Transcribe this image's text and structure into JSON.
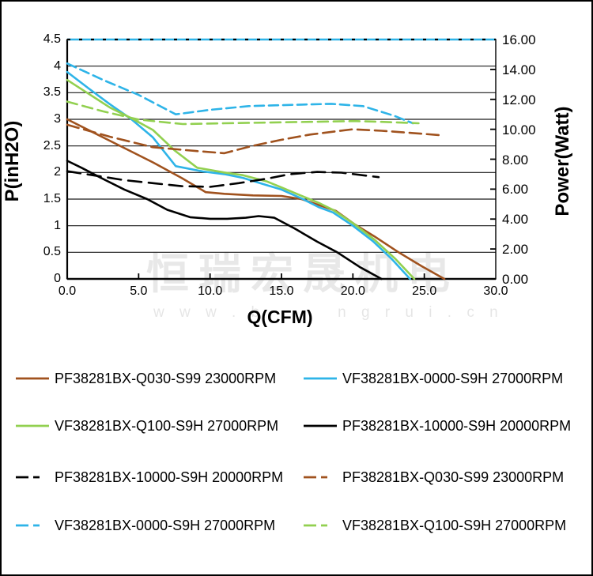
{
  "page": {
    "background": "#ffffff",
    "border_color": "#000000"
  },
  "colors": {
    "brown": "#A0521E",
    "cyan": "#2EB4E8",
    "green": "#92D050",
    "black": "#000000",
    "gridline": "#1a1a1a"
  },
  "chart_data": {
    "type": "line",
    "title": "",
    "xlabel": "Q(CFM)",
    "ylabel_left": "P(inH2O)",
    "ylabel_right": "Power(Watt)",
    "x_range": [
      0,
      30
    ],
    "x_ticks": [
      "0.0",
      "5.0",
      "10.0",
      "15.0",
      "20.0",
      "25.0",
      "30.0"
    ],
    "y_left_range": [
      0,
      4.5
    ],
    "y_left_ticks": [
      "4.5",
      "4",
      "3.5",
      "3",
      "2.5",
      "2",
      "1.5",
      "1",
      "0.5",
      "0"
    ],
    "y_right_range": [
      0,
      16
    ],
    "y_right_ticks": [
      "16.00",
      "14.00",
      "12.00",
      "10.00",
      "8.00",
      "6.00",
      "4.00",
      "2.00",
      "0.00"
    ],
    "grid": "horizontal gridlines every 0.5 inH2O",
    "legend_position": "bottom",
    "limit_line": {
      "axis": "right",
      "value": 16.0,
      "style": "cyan solid with black dots",
      "colors": [
        "#2EB4E8",
        "#000000"
      ]
    },
    "series": [
      {
        "name": "PF38281BX-Q030-S99 23000RPM",
        "curve": "static pressure",
        "axis": "left",
        "style": "solid",
        "color": "#A0521E",
        "points": [
          [
            0,
            3.0
          ],
          [
            2,
            2.73
          ],
          [
            4,
            2.46
          ],
          [
            6,
            2.19
          ],
          [
            8,
            1.9
          ],
          [
            9.7,
            1.63
          ],
          [
            11,
            1.6
          ],
          [
            13,
            1.57
          ],
          [
            15,
            1.56
          ],
          [
            16.4,
            1.5
          ],
          [
            18.8,
            1.28
          ],
          [
            20.1,
            1.03
          ],
          [
            21.5,
            0.8
          ],
          [
            23.2,
            0.5
          ],
          [
            24.8,
            0.24
          ],
          [
            26.4,
            0
          ]
        ]
      },
      {
        "name": "VF38281BX-0000-S9H 27000RPM",
        "curve": "static pressure",
        "axis": "left",
        "style": "solid",
        "color": "#2EB4E8",
        "points": [
          [
            0,
            3.89
          ],
          [
            1.5,
            3.58
          ],
          [
            3,
            3.28
          ],
          [
            4.5,
            3.0
          ],
          [
            6,
            2.66
          ],
          [
            7.6,
            2.12
          ],
          [
            9.5,
            2.02
          ],
          [
            11,
            1.97
          ],
          [
            12.3,
            1.9
          ],
          [
            14,
            1.76
          ],
          [
            15,
            1.68
          ],
          [
            16.5,
            1.5
          ],
          [
            17.6,
            1.35
          ],
          [
            18.6,
            1.25
          ],
          [
            20,
            1.0
          ],
          [
            21.4,
            0.71
          ],
          [
            22.7,
            0.38
          ],
          [
            24,
            0
          ]
        ]
      },
      {
        "name": "VF38281BX-Q100-S9H 27000RPM",
        "curve": "static pressure",
        "axis": "left",
        "style": "solid",
        "color": "#92D050",
        "points": [
          [
            0,
            3.74
          ],
          [
            1.5,
            3.48
          ],
          [
            3,
            3.22
          ],
          [
            4.5,
            3.02
          ],
          [
            6,
            2.8
          ],
          [
            7.5,
            2.42
          ],
          [
            9.1,
            2.09
          ],
          [
            11,
            2.0
          ],
          [
            12.3,
            1.95
          ],
          [
            14,
            1.83
          ],
          [
            15,
            1.72
          ],
          [
            16.5,
            1.55
          ],
          [
            17.6,
            1.43
          ],
          [
            18.6,
            1.3
          ],
          [
            20,
            1.05
          ],
          [
            21.5,
            0.74
          ],
          [
            23,
            0.37
          ],
          [
            24.3,
            0
          ]
        ]
      },
      {
        "name": "PF38281BX-10000-S9H 20000RPM",
        "curve": "static pressure",
        "axis": "left",
        "style": "solid",
        "color": "#000000",
        "points": [
          [
            0,
            2.22
          ],
          [
            1,
            2.09
          ],
          [
            2.5,
            1.88
          ],
          [
            4,
            1.68
          ],
          [
            5.6,
            1.5
          ],
          [
            7,
            1.3
          ],
          [
            8.6,
            1.16
          ],
          [
            10,
            1.13
          ],
          [
            11.2,
            1.13
          ],
          [
            12.5,
            1.15
          ],
          [
            13.4,
            1.18
          ],
          [
            14.5,
            1.15
          ],
          [
            15.9,
            0.95
          ],
          [
            17.5,
            0.7
          ],
          [
            18.9,
            0.5
          ],
          [
            20.5,
            0.22
          ],
          [
            22,
            0
          ]
        ]
      },
      {
        "name": "PF38281BX-10000-S9H 20000RPM",
        "curve": "power",
        "axis": "right",
        "style": "dashed",
        "color": "#000000",
        "dash": "17 9",
        "points": [
          [
            0,
            7.2
          ],
          [
            2,
            6.9
          ],
          [
            4,
            6.6
          ],
          [
            6,
            6.4
          ],
          [
            8,
            6.2
          ],
          [
            10,
            6.15
          ],
          [
            12,
            6.4
          ],
          [
            14,
            6.7
          ],
          [
            15.6,
            7.0
          ],
          [
            17.5,
            7.15
          ],
          [
            19.2,
            7.1
          ],
          [
            21.8,
            6.8
          ]
        ]
      },
      {
        "name": "PF38281BX-Q030-S99 23000RPM",
        "curve": "power",
        "axis": "right",
        "style": "dashed",
        "color": "#A0521E",
        "dash": "15 7",
        "points": [
          [
            0,
            10.3
          ],
          [
            3,
            9.5
          ],
          [
            6,
            8.8
          ],
          [
            9,
            8.55
          ],
          [
            11,
            8.4
          ],
          [
            13,
            8.9
          ],
          [
            15,
            9.3
          ],
          [
            17,
            9.65
          ],
          [
            20,
            10.0
          ],
          [
            22,
            9.9
          ],
          [
            24.2,
            9.75
          ],
          [
            26.2,
            9.6
          ]
        ]
      },
      {
        "name": "VF38281BX-0000-S9H 27000RPM",
        "curve": "power",
        "axis": "right",
        "style": "dashed",
        "color": "#2EB4E8",
        "dash": "12 6",
        "points": [
          [
            0,
            14.4
          ],
          [
            2.5,
            13.3
          ],
          [
            5,
            12.3
          ],
          [
            7.6,
            11.0
          ],
          [
            10,
            11.3
          ],
          [
            12.7,
            11.55
          ],
          [
            14.5,
            11.6
          ],
          [
            16.4,
            11.65
          ],
          [
            18.5,
            11.7
          ],
          [
            20.7,
            11.55
          ],
          [
            22.9,
            10.9
          ],
          [
            24.2,
            10.4
          ]
        ]
      },
      {
        "name": "VF38281BX-Q100-S9H 27000RPM",
        "curve": "power",
        "axis": "right",
        "style": "dashed",
        "color": "#92D050",
        "dash": "13 7",
        "points": [
          [
            0,
            11.85
          ],
          [
            2.5,
            11.2
          ],
          [
            5,
            10.65
          ],
          [
            7,
            10.45
          ],
          [
            8.1,
            10.35
          ],
          [
            11,
            10.4
          ],
          [
            14,
            10.45
          ],
          [
            17,
            10.5
          ],
          [
            20.1,
            10.55
          ],
          [
            22,
            10.5
          ],
          [
            24.6,
            10.4
          ]
        ]
      }
    ]
  },
  "legend": {
    "items": [
      {
        "label": "PF38281BX-Q030-S99 23000RPM",
        "color": "#A0521E",
        "style": "solid"
      },
      {
        "label": "VF38281BX-0000-S9H 27000RPM",
        "color": "#2EB4E8",
        "style": "solid"
      },
      {
        "label": "VF38281BX-Q100-S9H 27000RPM",
        "color": "#92D050",
        "style": "solid"
      },
      {
        "label": "PF38281BX-10000-S9H 20000RPM",
        "color": "#000000",
        "style": "solid"
      },
      {
        "label": "PF38281BX-10000-S9H 20000RPM",
        "color": "#000000",
        "style": "dashed"
      },
      {
        "label": "PF38281BX-Q030-S99 23000RPM",
        "color": "#A0521E",
        "style": "dashed"
      },
      {
        "label": "VF38281BX-0000-S9H 27000RPM",
        "color": "#2EB4E8",
        "style": "dashed"
      },
      {
        "label": "VF38281BX-Q100-S9H 27000RPM",
        "color": "#92D050",
        "style": "dashed"
      }
    ]
  },
  "watermark": {
    "cjk": "恒瑞宏晟机电",
    "url_prefix": "w w w . b",
    "url_suffix": "n g r u i . c n"
  }
}
